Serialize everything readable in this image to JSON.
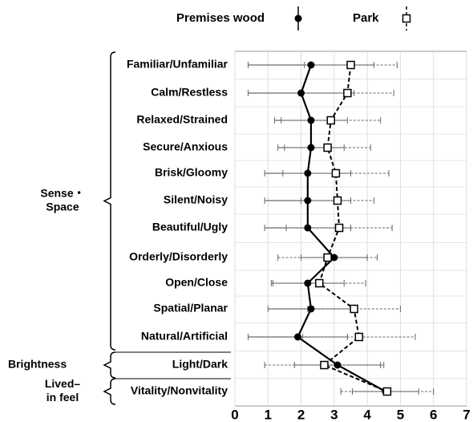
{
  "chart_data": {
    "type": "profile",
    "categories": [
      "Familiar/Unfamiliar",
      "Calm/Restless",
      "Relaxed/Strained",
      "Secure/Anxious",
      "Brisk/Gloomy",
      "Silent/Noisy",
      "Beautiful/Ugly",
      "Orderly/Disorderly",
      "Open/Close",
      "Spatial/Planar",
      "Natural/Artificial",
      "Light/Dark",
      "Vitality/Nonvitality"
    ],
    "groups": [
      {
        "label": [
          "Sense・",
          "Space"
        ]
      },
      {
        "label": [
          "Brightness"
        ]
      },
      {
        "label": [
          "Lived–",
          "in feel"
        ]
      }
    ],
    "series": [
      {
        "name": "Premises wood",
        "color": "#000000",
        "marker": "filled-circle",
        "line": "solid",
        "values": [
          2.3,
          2.0,
          2.3,
          2.3,
          2.2,
          2.2,
          2.2,
          3.0,
          2.2,
          2.3,
          1.9,
          3.1,
          4.55
        ],
        "errors": [
          1.9,
          1.6,
          1.1,
          1.0,
          1.3,
          1.3,
          1.3,
          1.0,
          1.1,
          1.3,
          1.5,
          1.3,
          1.0
        ]
      },
      {
        "name": "Park",
        "color": "#000000",
        "marker": "open-square",
        "line": "dashed",
        "values": [
          3.5,
          3.4,
          2.9,
          2.8,
          3.05,
          3.1,
          3.15,
          2.8,
          2.55,
          3.6,
          3.75,
          2.7,
          4.6
        ],
        "errors": [
          1.4,
          1.4,
          1.5,
          1.3,
          1.6,
          1.1,
          1.6,
          1.5,
          1.4,
          1.4,
          1.7,
          1.8,
          1.4
        ]
      }
    ],
    "xlim": [
      0,
      7
    ],
    "xticks": [
      0,
      1,
      2,
      3,
      4,
      5,
      6,
      7
    ],
    "grid": true,
    "legend": "top"
  }
}
